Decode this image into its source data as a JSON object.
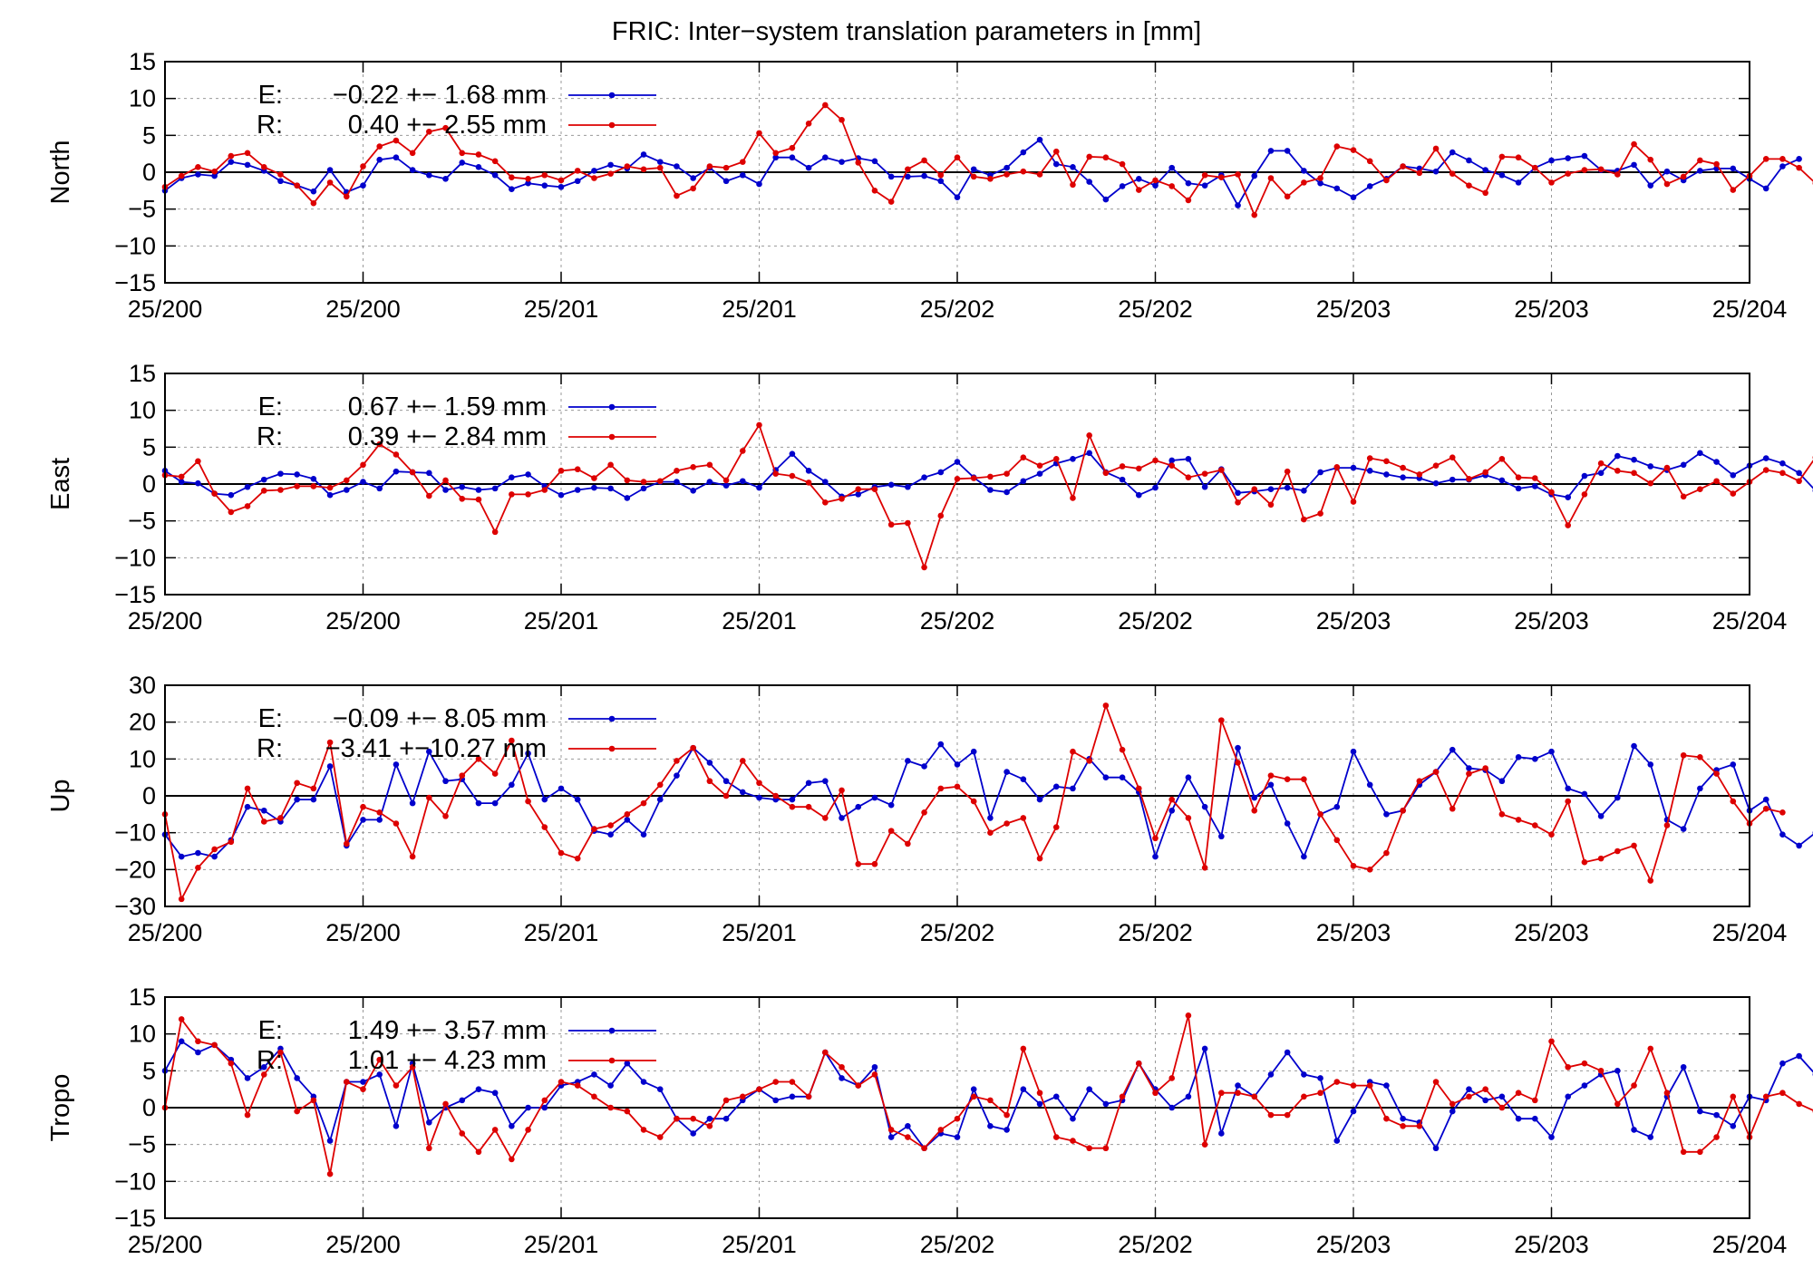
{
  "title": "FRIC: Inter−system translation parameters in [mm]",
  "colors": {
    "E": "#0000cc",
    "R": "#dd0000",
    "axis": "#000000",
    "grid": "#999999"
  },
  "x_tick_labels": [
    "25/200",
    "25/200",
    "25/201",
    "25/201",
    "25/202",
    "25/202",
    "25/203",
    "25/203",
    "25/204"
  ],
  "legend": {
    "E_label": "E:",
    "R_label": "R:"
  },
  "chart_data": [
    {
      "type": "line",
      "ylabel": "North",
      "ylim": [
        -15,
        15
      ],
      "yticks": [
        -15,
        -10,
        -5,
        0,
        5,
        10,
        15
      ],
      "xlim": [
        0,
        96
      ],
      "grid": true,
      "legend_position": "top-left",
      "series": [
        {
          "name": "E",
          "stat_text": "−0.22 +− 1.68 mm",
          "values": [
            -2.5,
            -0.8,
            -0.3,
            -0.5,
            1.4,
            1,
            0.2,
            -1.2,
            -1.8,
            -2.6,
            0.3,
            -2.7,
            -1.8,
            1.7,
            2,
            0.3,
            -0.4,
            -0.9,
            1.3,
            0.7,
            -0.4,
            -2.3,
            -1.5,
            -1.8,
            -2,
            -1.2,
            0.2,
            1,
            0.5,
            2.4,
            1.4,
            0.8,
            -0.8,
            0.6,
            -1.2,
            -0.4,
            -1.6,
            2,
            2,
            0.6,
            2,
            1.4,
            1.9,
            1.5,
            -0.6,
            -0.6,
            -0.5,
            -1.2,
            -3.4,
            0.4,
            -0.4,
            0.6,
            2.7,
            4.4,
            1.1,
            0.7,
            -1.3,
            -3.7,
            -1.9,
            -0.9,
            -1.8,
            0.6,
            -1.5,
            -1.8,
            -0.4,
            -4.5,
            -0.5,
            2.9,
            2.9,
            0.2,
            -1.5,
            -2.2,
            -3.4,
            -1.9,
            -0.9,
            0.8,
            0.5,
            0.1,
            2.7,
            1.6,
            0.3,
            -0.4,
            -1.4,
            0.6,
            1.6,
            1.9,
            2.2,
            0.3,
            0.2,
            1,
            -1.8,
            0.1,
            -1.1,
            0.2,
            0.5,
            0.5,
            -0.9,
            -2.2,
            0.8,
            1.8
          ]
        },
        {
          "name": "R",
          "stat_text": "0.40 +− 2.55 mm",
          "values": [
            -2,
            -0.5,
            0.7,
            0.1,
            2.2,
            2.6,
            0.7,
            -0.3,
            -1.8,
            -4.2,
            -1.4,
            -3.3,
            0.8,
            3.5,
            4.3,
            2.6,
            5.5,
            6,
            2.6,
            2.4,
            1.5,
            -0.7,
            -0.9,
            -0.4,
            -1.1,
            0.2,
            -0.8,
            -0.2,
            0.8,
            0.4,
            0.6,
            -3.2,
            -2.2,
            0.8,
            0.6,
            1.4,
            5.3,
            2.6,
            3.3,
            6.6,
            9.1,
            7.1,
            1.3,
            -2.5,
            -4,
            0.4,
            1.6,
            -0.4,
            2,
            -0.6,
            -0.9,
            -0.3,
            0.1,
            -0.3,
            2.8,
            -1.7,
            2.1,
            2,
            1.1,
            -2.4,
            -1.1,
            -1.9,
            -3.8,
            -0.4,
            -0.7,
            -0.3,
            -5.8,
            -0.8,
            -3.3,
            -1.4,
            -0.8,
            3.5,
            3,
            1.5,
            -1.1,
            0.8,
            -0.1,
            3.2,
            -0.2,
            -1.8,
            -2.8,
            2.1,
            2,
            0.6,
            -1.4,
            -0.2,
            0.3,
            0.4,
            -0.3,
            3.8,
            1.7,
            -1.6,
            -0.6,
            1.6,
            1.1,
            -2.4,
            -0.5,
            1.8,
            1.8,
            0.6,
            -1.5,
            -0.4
          ]
        }
      ]
    },
    {
      "type": "line",
      "ylabel": "East",
      "ylim": [
        -15,
        15
      ],
      "yticks": [
        -15,
        -10,
        -5,
        0,
        5,
        10,
        15
      ],
      "xlim": [
        0,
        96
      ],
      "grid": true,
      "legend_position": "top-left",
      "series": [
        {
          "name": "E",
          "stat_text": "0.67 +− 1.59 mm",
          "values": [
            1.8,
            0.3,
            0.1,
            -1.3,
            -1.5,
            -0.4,
            0.6,
            1.4,
            1.3,
            0.7,
            -1.5,
            -0.8,
            0.3,
            -0.6,
            1.7,
            1.6,
            1.5,
            -0.8,
            -0.4,
            -0.8,
            -0.6,
            0.9,
            1.3,
            -0.3,
            -1.5,
            -0.8,
            -0.5,
            -0.6,
            -1.9,
            -0.6,
            0.3,
            0.3,
            -0.9,
            0.3,
            -0.2,
            0.4,
            -0.5,
            1.9,
            4.1,
            1.8,
            0.3,
            -1.7,
            -1.4,
            -0.4,
            -0.1,
            -0.4,
            0.9,
            1.6,
            3,
            0.9,
            -0.8,
            -1.1,
            0.4,
            1.4,
            2.8,
            3.4,
            4.2,
            1.6,
            0.6,
            -1.5,
            -0.5,
            3.2,
            3.4,
            -0.4,
            2,
            -1.2,
            -1,
            -0.7,
            -0.5,
            -0.9,
            1.6,
            2.2,
            2.2,
            1.8,
            1.3,
            0.9,
            0.8,
            0.1,
            0.6,
            0.6,
            1.2,
            0.5,
            -0.6,
            -0.3,
            -1.4,
            -1.8,
            1.1,
            1.5,
            3.8,
            3.3,
            2.4,
            1.9,
            2.6,
            4.2,
            3,
            1.2,
            2.5,
            3.5,
            2.8,
            1.5,
            -0.9,
            -1
          ]
        },
        {
          "name": "R",
          "stat_text": "0.39 +− 2.84 mm",
          "values": [
            1.2,
            1,
            3.1,
            -1.3,
            -3.8,
            -3,
            -0.9,
            -0.8,
            -0.3,
            -0.3,
            -0.5,
            0.5,
            2.6,
            5.4,
            4,
            1.6,
            -1.6,
            0.5,
            -2,
            -2.1,
            -6.5,
            -1.4,
            -1.4,
            -0.8,
            1.8,
            2,
            0.8,
            2.6,
            0.5,
            0.3,
            0.4,
            1.8,
            2.3,
            2.6,
            0.5,
            4.5,
            8,
            1.4,
            1.1,
            0.2,
            -2.5,
            -2,
            -0.7,
            -0.7,
            -5.5,
            -5.3,
            -11.3,
            -4.3,
            0.7,
            0.8,
            1,
            1.4,
            3.6,
            2.5,
            3.4,
            -1.9,
            6.6,
            1.5,
            2.4,
            2.1,
            3.2,
            2.5,
            0.9,
            1.4,
            1.9,
            -2.5,
            -0.7,
            -2.8,
            1.7,
            -4.8,
            -4,
            2.3,
            -2.4,
            3.5,
            3.1,
            2.2,
            1.3,
            2.5,
            3.6,
            0.7,
            1.6,
            3.4,
            0.9,
            0.8,
            -1.1,
            -5.6,
            -1.4,
            2.8,
            1.8,
            1.5,
            0.1,
            2.2,
            -1.7,
            -0.7,
            0.4,
            -1.3,
            0.3,
            1.9,
            1.5,
            0.4,
            3.6
          ]
        }
      ]
    },
    {
      "type": "line",
      "ylabel": "Up",
      "ylim": [
        -30,
        30
      ],
      "yticks": [
        -30,
        -20,
        -10,
        0,
        10,
        20,
        30
      ],
      "xlim": [
        0,
        96
      ],
      "grid": true,
      "legend_position": "top-left",
      "series": [
        {
          "name": "E",
          "stat_text": "−0.09 +− 8.05 mm",
          "values": [
            -10.5,
            -16.5,
            -15.5,
            -16.5,
            -12,
            -3,
            -4,
            -7,
            -1,
            -1,
            8,
            -13.5,
            -6.5,
            -6.5,
            8.5,
            -2,
            12,
            4,
            4.5,
            -2,
            -2,
            3,
            11.5,
            -1,
            2,
            -1,
            -9.5,
            -10.5,
            -6.5,
            -10.5,
            -1,
            5.5,
            13,
            9,
            4,
            1,
            -0.5,
            -1,
            -1,
            3.5,
            4,
            -6,
            -3,
            -0.5,
            -2.5,
            9.5,
            8,
            14,
            8.5,
            12,
            -6,
            6.5,
            4.5,
            -1,
            2.5,
            2,
            10,
            5,
            5,
            1,
            -16.5,
            -4,
            5,
            -3,
            -11,
            13,
            -0.5,
            3,
            -7.5,
            -16.5,
            -5,
            -3,
            12,
            3,
            -5,
            -4,
            3,
            6.5,
            12.5,
            7.5,
            7,
            4,
            10.5,
            10,
            12,
            2,
            0.5,
            -5.5,
            -0.5,
            13.5,
            8.5,
            -6.5,
            -9,
            2,
            7,
            8.5,
            -4,
            -1,
            -10.5,
            -13.5,
            -10
          ]
        },
        {
          "name": "R",
          "stat_text": "−3.41 +−10.27 mm",
          "values": [
            -5,
            -28,
            -19.5,
            -14.5,
            -12.5,
            2,
            -7,
            -6,
            3.5,
            2,
            14.5,
            -13,
            -3,
            -4.5,
            -7.5,
            -16.5,
            -0.5,
            -5.5,
            5.5,
            10,
            6,
            15,
            -1.5,
            -8.5,
            -15.5,
            -17,
            -9,
            -8,
            -5,
            -2,
            3,
            9.5,
            13,
            4,
            0,
            9.5,
            3.5,
            0,
            -3,
            -3,
            -6,
            1.5,
            -18.5,
            -18.5,
            -9.5,
            -13,
            -4.5,
            2,
            2.5,
            -1.5,
            -10,
            -7.5,
            -6,
            -17,
            -8.5,
            12,
            9.5,
            24.5,
            12.5,
            2,
            -11.5,
            -1,
            -6,
            -19.5,
            20.5,
            9,
            -4,
            5.5,
            4.5,
            4.5,
            -5,
            -12,
            -19,
            -20,
            -15.5,
            -4,
            4,
            6.5,
            -3.5,
            6,
            7.5,
            -5,
            -6.5,
            -8,
            -10.5,
            -1.5,
            -18,
            -17,
            -15,
            -13.5,
            -23,
            -8,
            11,
            10.5,
            6,
            -1.5,
            -7.5,
            -3.5,
            -4.5
          ]
        }
      ]
    },
    {
      "type": "line",
      "ylabel": "Tropo",
      "ylim": [
        -15,
        15
      ],
      "yticks": [
        -15,
        -10,
        -5,
        0,
        5,
        10,
        15
      ],
      "xlim": [
        0,
        96
      ],
      "grid": true,
      "legend_position": "top-left",
      "series": [
        {
          "name": "E",
          "stat_text": "1.49 +− 3.57 mm",
          "values": [
            5,
            9,
            7.5,
            8.5,
            6.5,
            4,
            5.5,
            8,
            4,
            1.5,
            -4.5,
            3.5,
            3.5,
            4.5,
            -2.5,
            6,
            -2,
            0,
            1,
            2.5,
            2,
            -2.5,
            0,
            0,
            3,
            3.5,
            4.5,
            3,
            6,
            3.5,
            2.5,
            -1.5,
            -3.5,
            -1.5,
            -1.5,
            1,
            2.5,
            1,
            1.5,
            1.5,
            7.5,
            4,
            3,
            5.5,
            -4,
            -2.5,
            -5.5,
            -3.5,
            -4,
            2.5,
            -2.5,
            -3,
            2.5,
            0.5,
            1.5,
            -1.5,
            2.5,
            0.5,
            1,
            6,
            2.5,
            0,
            1.5,
            8,
            -3.5,
            3,
            1.5,
            4.5,
            7.5,
            4.5,
            4,
            -4.5,
            -0.5,
            3.5,
            3,
            -1.5,
            -2,
            -5.5,
            -0.5,
            2.5,
            1,
            1.5,
            -1.5,
            -1.5,
            -4,
            1.5,
            3,
            4.5,
            5,
            -3,
            -4,
            1.5,
            5.5,
            -0.5,
            -1,
            -2.5,
            1.5,
            1,
            6,
            7,
            4.5
          ]
        },
        {
          "name": "R",
          "stat_text": "1.01 +− 4.23 mm",
          "values": [
            0,
            12,
            9,
            8.5,
            6,
            -1,
            4.5,
            7.5,
            -0.5,
            1,
            -9,
            3.5,
            2.5,
            6.5,
            3,
            5.5,
            -5.5,
            0.5,
            -3.5,
            -6,
            -3,
            -7,
            -3,
            1,
            3.5,
            3,
            1.5,
            0,
            -0.5,
            -3,
            -4,
            -1.5,
            -1.5,
            -2.5,
            1,
            1.5,
            2.5,
            3.5,
            3.5,
            1.5,
            7.5,
            5.5,
            3,
            4.5,
            -3,
            -4,
            -5.5,
            -3,
            -1.5,
            1.5,
            1,
            -1,
            8,
            2,
            -4,
            -4.5,
            -5.5,
            -5.5,
            1.5,
            6,
            2,
            4,
            12.5,
            -5,
            2,
            2,
            1.5,
            -1,
            -1,
            1.5,
            2,
            3.5,
            3,
            3,
            -1.5,
            -2.5,
            -2.5,
            3.5,
            0.5,
            1.5,
            2.5,
            0,
            2,
            1,
            9,
            5.5,
            6,
            5,
            0.5,
            3,
            8,
            2,
            -6,
            -6,
            -4,
            1.5,
            -4,
            1.5,
            2,
            0.5,
            -0.5
          ]
        }
      ]
    }
  ]
}
